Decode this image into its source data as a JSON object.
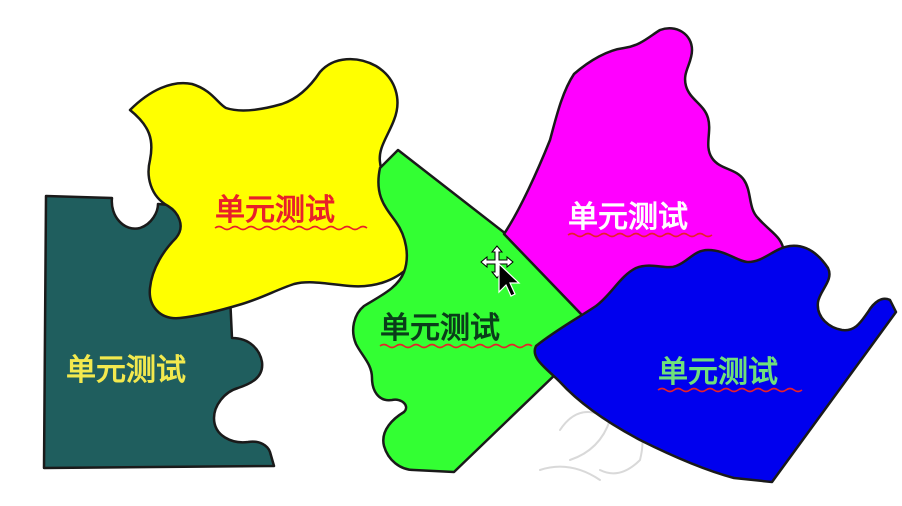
{
  "pieces": [
    {
      "id": "teal",
      "label": "单元测试",
      "fill": "#1f5e5e",
      "text_color": "#f2e94e"
    },
    {
      "id": "yellow",
      "label": "单元测试",
      "fill": "#ffff00",
      "text_color": "#e8202a"
    },
    {
      "id": "green",
      "label": "单元测试",
      "fill": "#33ff33",
      "text_color": "#0a3d1a"
    },
    {
      "id": "magenta",
      "label": "单元测试",
      "fill": "#ff00ff",
      "text_color": "#ffffff"
    },
    {
      "id": "blue",
      "label": "单元测试",
      "fill": "#0000ee",
      "text_color": "#6fe07a"
    }
  ],
  "spellcheck_underline_color": "#e8202a",
  "cursor": "move-cursor-icon"
}
